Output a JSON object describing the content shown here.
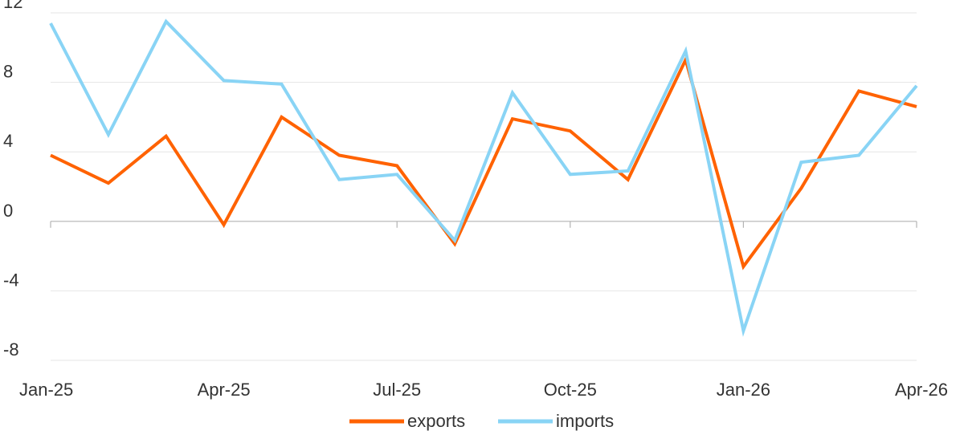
{
  "chart_data": {
    "type": "line",
    "title": "",
    "xlabel": "",
    "ylabel": "",
    "ylim": [
      -8,
      12
    ],
    "yticks": [
      12,
      8,
      4,
      0,
      -4,
      -8
    ],
    "x": [
      "Jan-25",
      "Feb-25",
      "Mar-25",
      "Apr-25",
      "May-25",
      "Jun-25",
      "Jul-25",
      "Aug-25",
      "Sep-25",
      "Oct-25",
      "Nov-25",
      "Dec-25",
      "Jan-26",
      "Feb-26",
      "Mar-26",
      "Apr-26"
    ],
    "x_tick_labels": [
      "Jan-25",
      "Apr-25",
      "Jul-25",
      "Oct-25",
      "Jan-26",
      "Apr-26"
    ],
    "grid": "horizontal",
    "legend_position": "bottom-center",
    "series": [
      {
        "name": "exports",
        "color": "#ff6200",
        "values": [
          3.8,
          2.2,
          4.9,
          -0.2,
          6.0,
          3.8,
          3.2,
          -1.3,
          5.9,
          5.2,
          2.4,
          9.3,
          -2.6,
          1.9,
          7.5,
          6.6
        ]
      },
      {
        "name": "imports",
        "color": "#89d4f5",
        "values": [
          11.4,
          5.0,
          11.5,
          8.1,
          7.9,
          2.4,
          2.7,
          -1.1,
          7.4,
          2.7,
          2.9,
          9.8,
          -6.3,
          3.4,
          3.8,
          7.8
        ]
      }
    ]
  }
}
